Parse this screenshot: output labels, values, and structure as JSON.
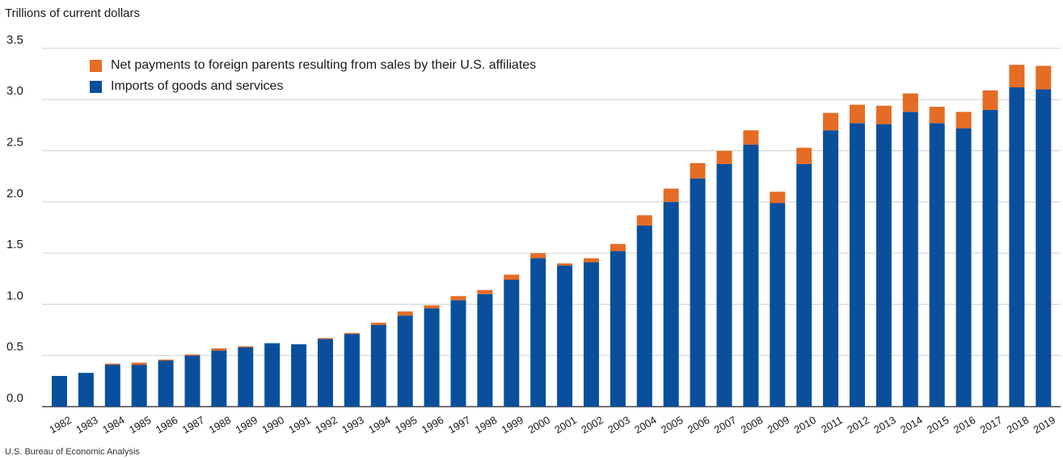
{
  "chart_data": {
    "type": "bar",
    "stacked": true,
    "ylabel": "Trillions of current dollars",
    "ylim": [
      0,
      3.5
    ],
    "yticks": [
      "0.0",
      "0.5",
      "1.0",
      "1.5",
      "2.0",
      "2.5",
      "3.0",
      "3.5"
    ],
    "grid": true,
    "legend_position": "top-left",
    "categories": [
      "1982",
      "1983",
      "1984",
      "1985",
      "1986",
      "1987",
      "1988",
      "1989",
      "1990",
      "1991",
      "1992",
      "1993",
      "1994",
      "1995",
      "1996",
      "1997",
      "1998",
      "1999",
      "2000",
      "2001",
      "2002",
      "2003",
      "2004",
      "2005",
      "2006",
      "2007",
      "2008",
      "2009",
      "2010",
      "2011",
      "2012",
      "2013",
      "2014",
      "2015",
      "2016",
      "2017",
      "2018",
      "2019"
    ],
    "series": [
      {
        "name": "Imports of goods and services",
        "color": "#0a4f9c",
        "values": [
          0.3,
          0.33,
          0.41,
          0.41,
          0.45,
          0.5,
          0.55,
          0.58,
          0.62,
          0.61,
          0.66,
          0.71,
          0.8,
          0.89,
          0.96,
          1.04,
          1.1,
          1.24,
          1.45,
          1.38,
          1.41,
          1.52,
          1.77,
          2.0,
          2.23,
          2.37,
          2.56,
          1.99,
          2.37,
          2.7,
          2.77,
          2.76,
          2.88,
          2.77,
          2.72,
          2.9,
          3.12,
          3.1
        ]
      },
      {
        "name": "Net payments to foreign parents resulting from sales by their U.S. affiliates",
        "color": "#e46c25",
        "values": [
          0.0,
          0.0,
          0.01,
          0.02,
          0.01,
          0.01,
          0.02,
          0.01,
          0.0,
          0.0,
          0.01,
          0.01,
          0.02,
          0.04,
          0.03,
          0.04,
          0.04,
          0.05,
          0.05,
          0.02,
          0.04,
          0.07,
          0.1,
          0.13,
          0.15,
          0.13,
          0.14,
          0.11,
          0.16,
          0.17,
          0.18,
          0.18,
          0.18,
          0.16,
          0.16,
          0.19,
          0.22,
          0.23
        ]
      }
    ],
    "source": "U.S. Bureau of Economic Analysis"
  }
}
